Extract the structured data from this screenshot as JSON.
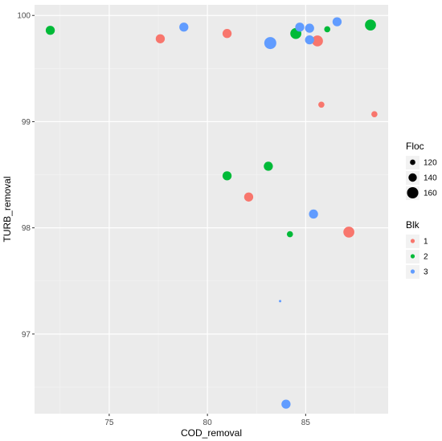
{
  "chart_data": {
    "type": "scatter",
    "xlabel": "COD_removal",
    "ylabel": "TURB_removal",
    "xlim": [
      71.2,
      89.2
    ],
    "ylim": [
      96.25,
      100.1
    ],
    "x_ticks": [
      75,
      80,
      85
    ],
    "y_ticks": [
      97,
      98,
      99,
      100
    ],
    "grid": true,
    "size_legend": {
      "title": "Floc",
      "entries": [
        {
          "label": "120",
          "value": 120
        },
        {
          "label": "140",
          "value": 140
        },
        {
          "label": "160",
          "value": 160
        }
      ]
    },
    "color_legend": {
      "title": "Blk",
      "entries": [
        {
          "label": "1",
          "color": "#F8766D"
        },
        {
          "label": "2",
          "color": "#00BA38"
        },
        {
          "label": "3",
          "color": "#619CFF"
        }
      ]
    },
    "series": [
      {
        "name": "1",
        "color": "#F8766D",
        "points": [
          {
            "x": 77.6,
            "y": 99.78,
            "floc": 145
          },
          {
            "x": 81.0,
            "y": 99.83,
            "floc": 145
          },
          {
            "x": 85.6,
            "y": 99.76,
            "floc": 158
          },
          {
            "x": 85.8,
            "y": 99.16,
            "floc": 125
          },
          {
            "x": 88.5,
            "y": 99.07,
            "floc": 125
          },
          {
            "x": 82.1,
            "y": 98.29,
            "floc": 145
          },
          {
            "x": 87.2,
            "y": 97.96,
            "floc": 158
          }
        ]
      },
      {
        "name": "2",
        "color": "#00BA38",
        "points": [
          {
            "x": 72.0,
            "y": 99.86,
            "floc": 145
          },
          {
            "x": 84.5,
            "y": 99.83,
            "floc": 158
          },
          {
            "x": 86.1,
            "y": 99.87,
            "floc": 125
          },
          {
            "x": 88.3,
            "y": 99.91,
            "floc": 158
          },
          {
            "x": 81.0,
            "y": 98.49,
            "floc": 145
          },
          {
            "x": 83.1,
            "y": 98.58,
            "floc": 145
          },
          {
            "x": 84.2,
            "y": 97.94,
            "floc": 125
          }
        ]
      },
      {
        "name": "3",
        "color": "#619CFF",
        "points": [
          {
            "x": 78.8,
            "y": 99.89,
            "floc": 145
          },
          {
            "x": 83.2,
            "y": 99.74,
            "floc": 165
          },
          {
            "x": 84.7,
            "y": 99.89,
            "floc": 145
          },
          {
            "x": 85.2,
            "y": 99.88,
            "floc": 145
          },
          {
            "x": 85.2,
            "y": 99.77,
            "floc": 145
          },
          {
            "x": 86.6,
            "y": 99.94,
            "floc": 145
          },
          {
            "x": 85.4,
            "y": 98.13,
            "floc": 145
          },
          {
            "x": 83.7,
            "y": 97.31,
            "floc": 100
          },
          {
            "x": 84.0,
            "y": 96.34,
            "floc": 145
          }
        ]
      }
    ]
  }
}
